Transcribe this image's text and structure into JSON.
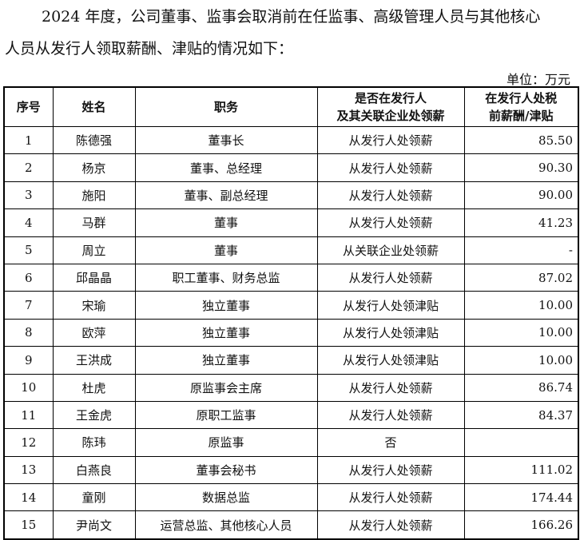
{
  "intro": [
    "2024 年度，公司董事、监事会取消前在任监事、高级管理人员与其他核心",
    "人员从发行人领取薪酬、津贴的情况如下："
  ],
  "unit": "单位：万元",
  "headers": [
    "序号",
    "姓名",
    "职务",
    "是否在发行人\n及其关联企业处领薪",
    "在发行人处税\n前薪酬/津贴"
  ],
  "rows": [
    [
      "1",
      "陈德强",
      "董事长",
      "从发行人处领薪",
      "85.50"
    ],
    [
      "2",
      "杨京",
      "董事、总经理",
      "从发行人处领薪",
      "90.30"
    ],
    [
      "3",
      "施阳",
      "董事、副总经理",
      "从发行人处领薪",
      "90.00"
    ],
    [
      "4",
      "马群",
      "董事",
      "从发行人处领薪",
      "41.23"
    ],
    [
      "5",
      "周立",
      "董事",
      "从关联企业处领薪",
      "-"
    ],
    [
      "6",
      "邱晶晶",
      "职工董事、财务总监",
      "从发行人处领薪",
      "87.02"
    ],
    [
      "7",
      "宋瑜",
      "独立董事",
      "从发行人处领津贴",
      "10.00"
    ],
    [
      "8",
      "欧萍",
      "独立董事",
      "从发行人处领津贴",
      "10.00"
    ],
    [
      "9",
      "王洪成",
      "独立董事",
      "从发行人处领津贴",
      "10.00"
    ],
    [
      "10",
      "杜虎",
      "原监事会主席",
      "从发行人处领薪",
      "86.74"
    ],
    [
      "11",
      "王金虎",
      "原职工监事",
      "从发行人处领薪",
      "84.37"
    ],
    [
      "12",
      "陈玮",
      "原监事",
      "否",
      ""
    ],
    [
      "13",
      "白燕良",
      "董事会秘书",
      "从发行人处领薪",
      "111.02"
    ],
    [
      "14",
      "童刚",
      "数据总监",
      "从发行人处领薪",
      "174.44"
    ],
    [
      "15",
      "尹尚文",
      "运营总监、其他核心人员",
      "从发行人处领薪",
      "166.26"
    ]
  ]
}
